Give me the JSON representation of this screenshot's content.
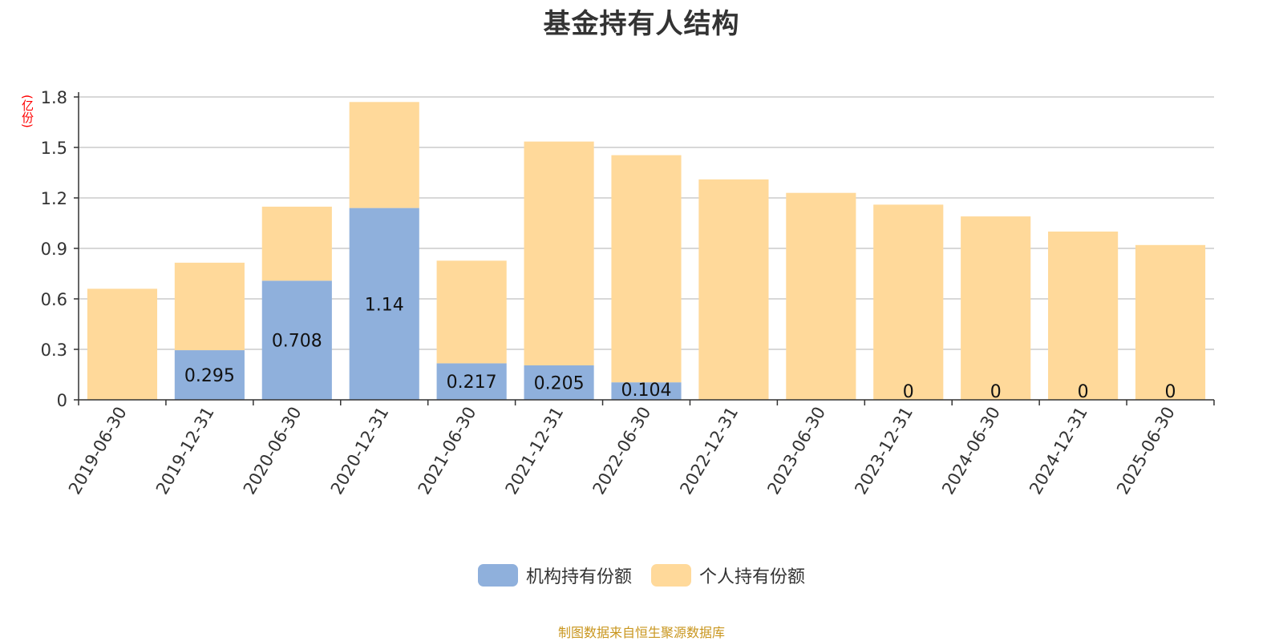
{
  "chart_data": {
    "type": "bar",
    "stacked": true,
    "title": "基金持有人结构",
    "unit_label": "(亿份)",
    "categories": [
      "2019-06-30",
      "2019-12-31",
      "2020-06-30",
      "2020-12-31",
      "2021-06-30",
      "2021-12-31",
      "2022-06-30",
      "2022-12-31",
      "2023-06-30",
      "2023-12-31",
      "2024-06-30",
      "2024-12-31",
      "2025-06-30"
    ],
    "y_ticks": [
      "0",
      "0.3",
      "0.6",
      "0.9",
      "1.2",
      "1.5",
      "1.8"
    ],
    "ylim": [
      0,
      1.8
    ],
    "grid": true,
    "legend_position": "bottom-center",
    "series": [
      {
        "name": "机构持有份额",
        "color": "#8fb0dc",
        "values": [
          0,
          0.295,
          0.708,
          1.14,
          0.217,
          0.205,
          0.104,
          0,
          0,
          0,
          0,
          0,
          0
        ],
        "labels": [
          "",
          "0.295",
          "0.708",
          "1.14",
          "0.217",
          "0.205",
          "0.104",
          "",
          "",
          "0",
          "0",
          "0",
          "0"
        ]
      },
      {
        "name": "个人持有份额",
        "color": "#ffd99a",
        "values": [
          0.66,
          0.52,
          0.44,
          0.63,
          0.61,
          1.33,
          1.35,
          1.31,
          1.23,
          1.16,
          1.09,
          1.0,
          0.92
        ]
      }
    ]
  },
  "footer": "制图数据来自恒生聚源数据库"
}
